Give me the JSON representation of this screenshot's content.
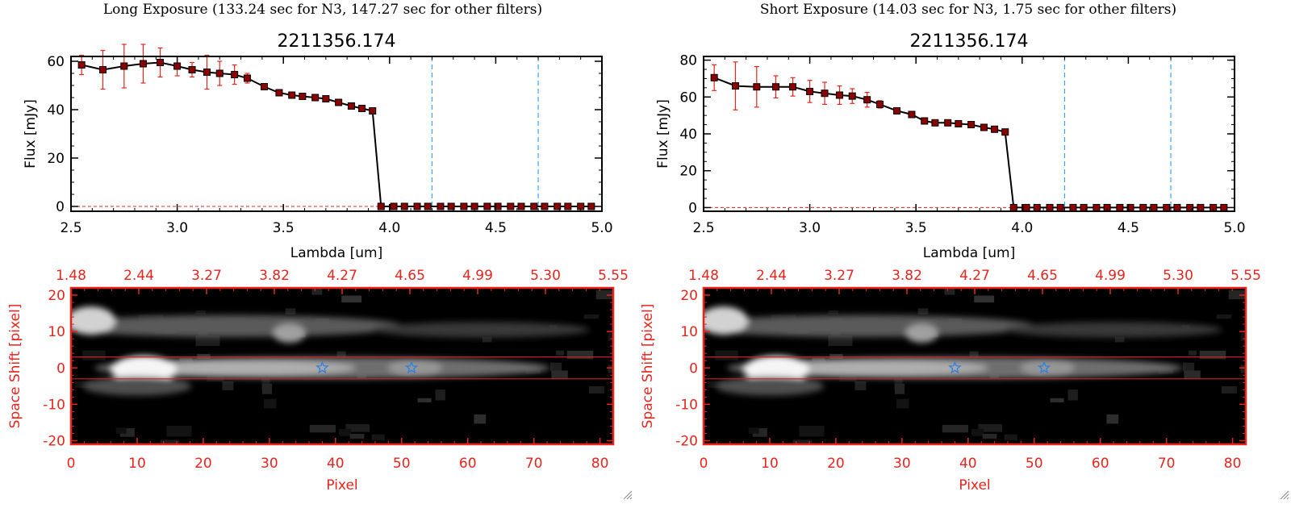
{
  "panels": [
    {
      "header": "Long Exposure (133.24 sec for N3, 147.27 sec for other filters)",
      "source_id": "2211356.174"
    },
    {
      "header": "Short Exposure (14.03 sec for N3, 1.75 sec for other filters)",
      "source_id": "2211356.174"
    }
  ],
  "colors": {
    "axis": "#000000",
    "spectrum_line": "#000000",
    "marker": "#8b0000",
    "error_bar": "#e8241c",
    "dashed_vline": "#3aa0ff",
    "image_frame": "#e8241c",
    "aperture_line": "#cc2222",
    "star_marker": "#2f7fe0",
    "background": "#ffffff"
  },
  "chart_data": [
    {
      "type": "line",
      "panel": "long-spectrum",
      "title": "2211356.174",
      "xlabel": "Lambda [um]",
      "ylabel": "Flux [mJy]",
      "xlim": [
        2.5,
        5.0
      ],
      "ylim": [
        -2,
        62
      ],
      "xticks": [
        "2.5",
        "3.0",
        "3.5",
        "4.0",
        "4.5",
        "5.0"
      ],
      "yticks": [
        "0",
        "20",
        "40",
        "60"
      ],
      "x": [
        2.55,
        2.65,
        2.75,
        2.84,
        2.92,
        3.0,
        3.07,
        3.14,
        3.2,
        3.27,
        3.33,
        3.41,
        3.48,
        3.54,
        3.59,
        3.65,
        3.7,
        3.76,
        3.82,
        3.87,
        3.92,
        3.96,
        4.02,
        4.07,
        4.13,
        4.18,
        4.24,
        4.29,
        4.35,
        4.4,
        4.46,
        4.51,
        4.57,
        4.62,
        4.68,
        4.73,
        4.79,
        4.84,
        4.9,
        4.95
      ],
      "y": [
        58.5,
        56.5,
        58.0,
        59.0,
        59.5,
        58.0,
        56.5,
        55.5,
        55.0,
        54.5,
        53.0,
        49.5,
        47.0,
        46.0,
        45.5,
        45.0,
        44.5,
        43.0,
        41.5,
        40.5,
        39.5,
        0,
        0,
        0,
        0,
        0,
        0,
        0,
        0,
        0,
        0,
        0,
        0,
        0,
        0,
        0,
        0,
        0,
        0,
        0
      ],
      "yerr": [
        4,
        8,
        9,
        8,
        6,
        4,
        3,
        7,
        5,
        4,
        2,
        1,
        1,
        1,
        1,
        1,
        1,
        1,
        1,
        1,
        1,
        0,
        0,
        0,
        0,
        0,
        0,
        0,
        0,
        0,
        0,
        0,
        0,
        0,
        0,
        0,
        0,
        0,
        0,
        0
      ],
      "vlines": [
        4.2,
        4.7
      ],
      "hline_y": 0
    },
    {
      "type": "heatmap",
      "panel": "long-image",
      "xlabel": "Pixel",
      "ylabel": "Space Shift [pixel]",
      "xlim": [
        0,
        82
      ],
      "ylim": [
        -21,
        22
      ],
      "xticks": [
        "0",
        "10",
        "20",
        "30",
        "40",
        "50",
        "60",
        "70",
        "80"
      ],
      "yticks": [
        "-20",
        "-10",
        "0",
        "10",
        "20"
      ],
      "top_ticks": [
        "1.48",
        "2.44",
        "3.27",
        "3.82",
        "4.27",
        "4.65",
        "4.99",
        "5.30",
        "5.55"
      ],
      "aperture_lines": [
        3,
        -3
      ],
      "star_markers": [
        [
          38,
          0
        ],
        [
          51.5,
          0
        ]
      ]
    },
    {
      "type": "line",
      "panel": "short-spectrum",
      "title": "2211356.174",
      "xlabel": "Lambda [um]",
      "ylabel": "Flux [mJy]",
      "xlim": [
        2.5,
        5.0
      ],
      "ylim": [
        -2,
        82
      ],
      "xticks": [
        "2.5",
        "3.0",
        "3.5",
        "4.0",
        "4.5",
        "5.0"
      ],
      "yticks": [
        "0",
        "20",
        "40",
        "60",
        "80"
      ],
      "x": [
        2.55,
        2.65,
        2.75,
        2.84,
        2.92,
        3.0,
        3.07,
        3.14,
        3.2,
        3.27,
        3.33,
        3.41,
        3.48,
        3.54,
        3.59,
        3.65,
        3.7,
        3.76,
        3.82,
        3.87,
        3.92,
        3.96,
        4.02,
        4.07,
        4.13,
        4.18,
        4.24,
        4.29,
        4.35,
        4.4,
        4.46,
        4.51,
        4.57,
        4.62,
        4.68,
        4.73,
        4.79,
        4.84,
        4.9,
        4.95
      ],
      "y": [
        70.5,
        66.0,
        65.5,
        65.5,
        65.5,
        63.0,
        62.0,
        61.0,
        60.5,
        58.5,
        56.0,
        52.5,
        50.5,
        47.0,
        46.0,
        46.0,
        45.5,
        45.0,
        43.5,
        42.5,
        41.0,
        0,
        0,
        0,
        0,
        0,
        0,
        0,
        0,
        0,
        0,
        0,
        0,
        0,
        0,
        0,
        0,
        0,
        0,
        0
      ],
      "yerr": [
        7,
        13,
        11,
        6,
        5,
        6,
        6,
        5,
        4,
        4,
        2,
        1,
        1,
        1,
        1,
        1,
        1,
        1,
        1,
        1,
        1,
        0,
        0,
        0,
        0,
        0,
        0,
        0,
        0,
        0,
        0,
        0,
        0,
        0,
        0,
        0,
        0,
        0,
        0,
        0
      ],
      "vlines": [
        4.2,
        4.7
      ],
      "hline_y": 0
    },
    {
      "type": "heatmap",
      "panel": "short-image",
      "xlabel": "Pixel",
      "ylabel": "Space Shift [pixel]",
      "xlim": [
        0,
        82
      ],
      "ylim": [
        -21,
        22
      ],
      "xticks": [
        "0",
        "10",
        "20",
        "30",
        "40",
        "50",
        "60",
        "70",
        "80"
      ],
      "yticks": [
        "-20",
        "-10",
        "0",
        "10",
        "20"
      ],
      "top_ticks": [
        "1.48",
        "2.44",
        "3.27",
        "3.82",
        "4.27",
        "4.65",
        "4.99",
        "5.30",
        "5.55"
      ],
      "aperture_lines": [
        3,
        -3
      ],
      "star_markers": [
        [
          38,
          0
        ],
        [
          51.5,
          0
        ]
      ]
    }
  ]
}
